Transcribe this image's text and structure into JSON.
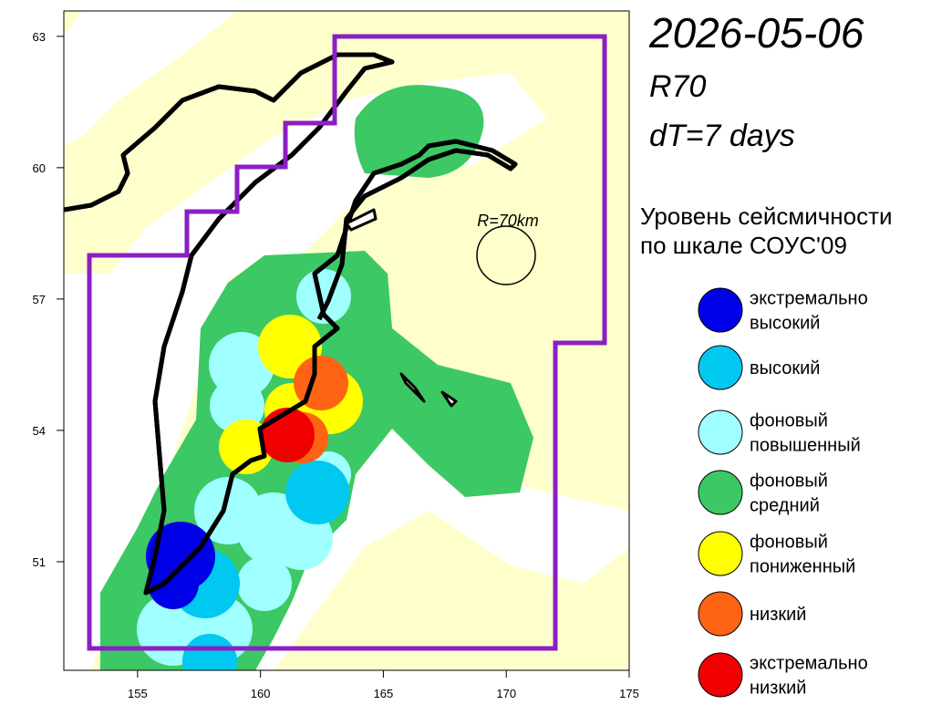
{
  "header": {
    "date": "2026-05-06",
    "radius_code": "R70",
    "interval": "dT=7 days"
  },
  "map": {
    "xlim": [
      152,
      175
    ],
    "ylim": [
      48.52,
      63.58
    ],
    "xticks": [
      155,
      160,
      165,
      170,
      175
    ],
    "yticks": [
      51,
      54,
      57,
      60,
      63
    ],
    "circle_label": "R=70km"
  },
  "legend": {
    "title": [
      "Уровень сейсмичности",
      "по шкале СОУС'09"
    ],
    "items": [
      {
        "label": [
          "экстремально",
          "высокий"
        ],
        "color": "#0000e6"
      },
      {
        "label": [
          "высокий"
        ],
        "color": "#00c8f0"
      },
      {
        "label": [
          "фоновый",
          "повышенный"
        ],
        "color": "#a0ffff"
      },
      {
        "label": [
          "фоновый",
          "средний"
        ],
        "color": "#3cc864"
      },
      {
        "label": [
          "фоновый",
          "пониженный"
        ],
        "color": "#ffff00"
      },
      {
        "label": [
          "низкий"
        ],
        "color": "#ff6414"
      },
      {
        "label": [
          "экстремально",
          "низкий"
        ],
        "color": "#f00000"
      }
    ]
  }
}
